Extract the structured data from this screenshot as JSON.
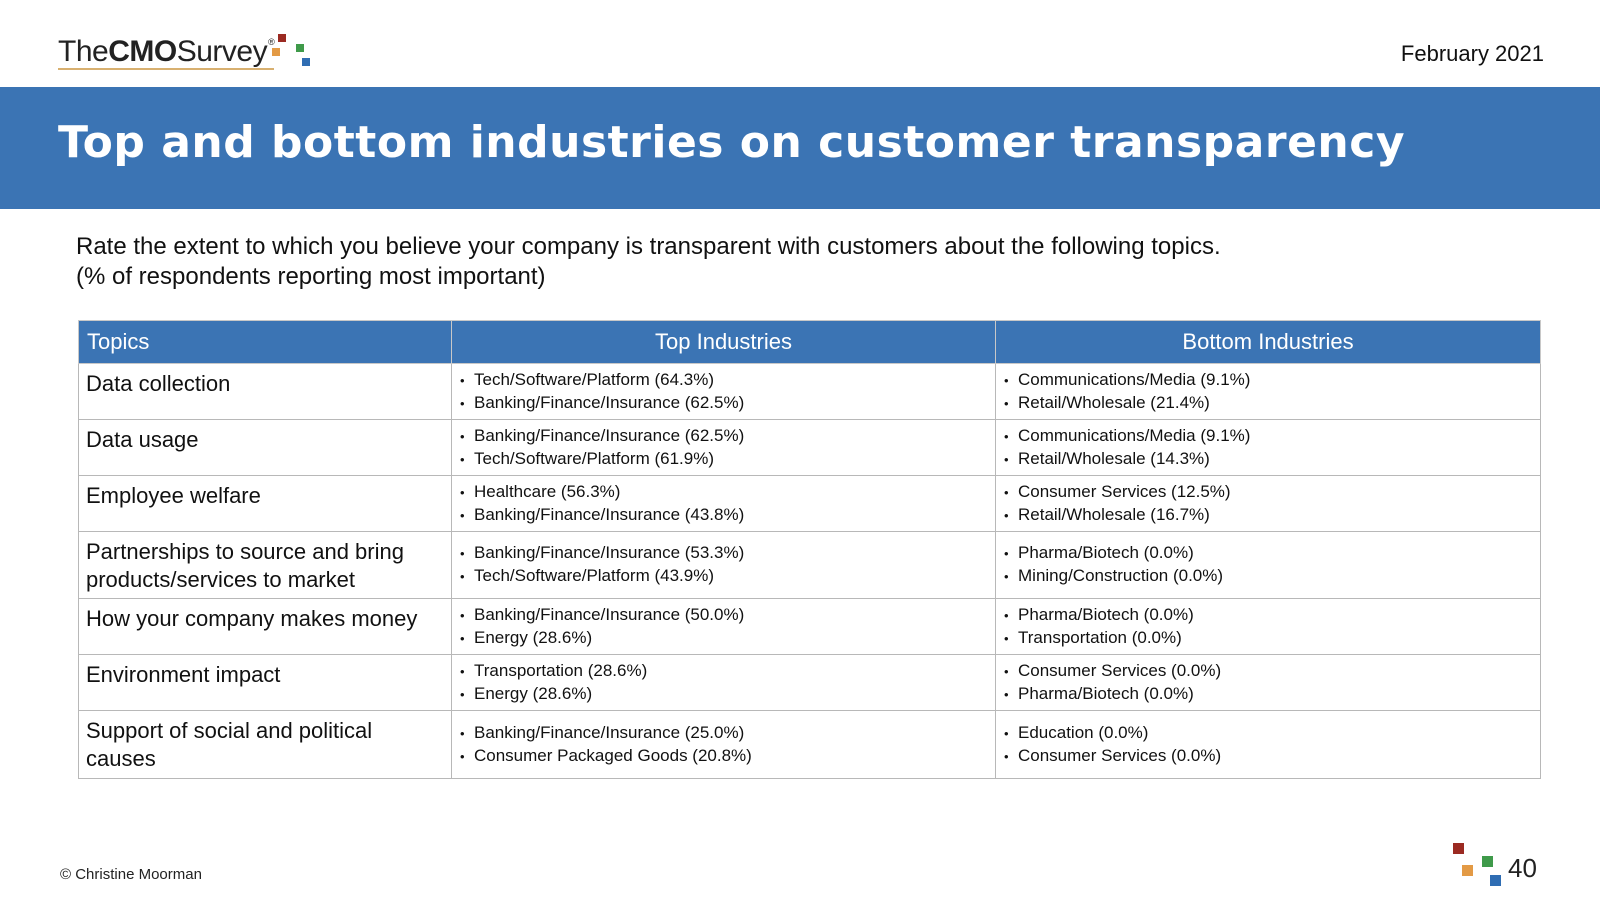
{
  "header": {
    "logo_prefix": "The",
    "logo_bold": "CMO",
    "logo_suffix": "Survey",
    "logo_reg": "®",
    "date": "February 2021"
  },
  "title": "Top and bottom industries on customer transparency",
  "question": {
    "line1": "Rate the extent to which you believe your company is transparent with customers about the following topics.",
    "line2": "(% of respondents reporting most important)"
  },
  "table": {
    "headers": [
      "Topics",
      "Top Industries",
      "Bottom Industries"
    ],
    "rows": [
      {
        "topic": "Data collection",
        "top": [
          "Tech/Software/Platform (64.3%)",
          "Banking/Finance/Insurance (62.5%)"
        ],
        "bottom": [
          "Communications/Media (9.1%)",
          "Retail/Wholesale (21.4%)"
        ]
      },
      {
        "topic": "Data usage",
        "top": [
          "Banking/Finance/Insurance (62.5%)",
          "Tech/Software/Platform (61.9%)"
        ],
        "bottom": [
          "Communications/Media (9.1%)",
          "Retail/Wholesale (14.3%)"
        ]
      },
      {
        "topic": "Employee welfare",
        "top": [
          "Healthcare (56.3%)",
          "Banking/Finance/Insurance (43.8%)"
        ],
        "bottom": [
          "Consumer Services (12.5%)",
          "Retail/Wholesale (16.7%)"
        ]
      },
      {
        "topic": "Partnerships to source and bring products/services to market",
        "top": [
          "Banking/Finance/Insurance (53.3%)",
          "Tech/Software/Platform (43.9%)"
        ],
        "bottom": [
          "Pharma/Biotech (0.0%)",
          "Mining/Construction (0.0%)"
        ]
      },
      {
        "topic": "How your company makes money",
        "top": [
          "Banking/Finance/Insurance (50.0%)",
          "Energy (28.6%)"
        ],
        "bottom": [
          "Pharma/Biotech (0.0%)",
          "Transportation (0.0%)"
        ]
      },
      {
        "topic": "Environment impact",
        "top": [
          "Transportation (28.6%)",
          "Energy (28.6%)"
        ],
        "bottom": [
          "Consumer Services (0.0%)",
          "Pharma/Biotech  (0.0%)"
        ]
      },
      {
        "topic": "Support of social and political causes",
        "top": [
          "Banking/Finance/Insurance (25.0%)",
          "Consumer Packaged Goods (20.8%)"
        ],
        "bottom": [
          "Education (0.0%)",
          "Consumer Services (0.0%)"
        ]
      }
    ]
  },
  "footer": {
    "copyright": "© Christine Moorman",
    "page_number": "40"
  },
  "colors": {
    "brand_blue": "#3b74b4",
    "sq_red": "#9b2a22",
    "sq_orange": "#e39a45",
    "sq_green": "#3f9a4a",
    "sq_blue": "#2f6db3"
  }
}
